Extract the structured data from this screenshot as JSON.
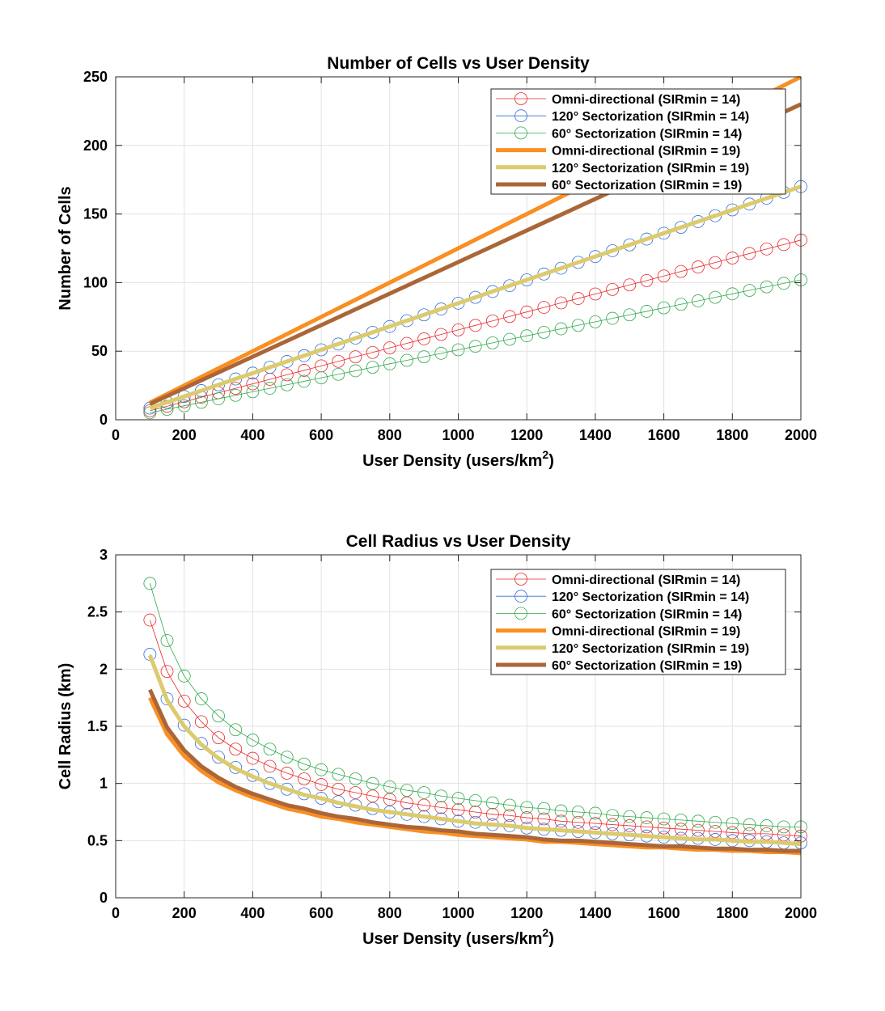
{
  "chart_data": [
    {
      "type": "line",
      "title": "Number of Cells vs User Density",
      "xlabel": "User Density (users/km",
      "xlabel_sup": "2",
      "xlabel_end": ")",
      "ylabel": "Number of Cells",
      "xlim": [
        0,
        2000
      ],
      "ylim": [
        0,
        250
      ],
      "xticks": [
        0,
        200,
        400,
        600,
        800,
        1000,
        1200,
        1400,
        1600,
        1800,
        2000
      ],
      "yticks": [
        0,
        50,
        100,
        150,
        200,
        250
      ],
      "grid": true,
      "legend": "top-right",
      "x": [
        100,
        150,
        200,
        250,
        300,
        350,
        400,
        450,
        500,
        550,
        600,
        650,
        700,
        750,
        800,
        850,
        900,
        950,
        1000,
        1050,
        1100,
        1150,
        1200,
        1250,
        1300,
        1350,
        1400,
        1450,
        1500,
        1550,
        1600,
        1650,
        1700,
        1750,
        1800,
        1850,
        1900,
        1950,
        2000
      ],
      "series": [
        {
          "name": "Omni-directional (SIRmin = 14)",
          "color": "#e8282b",
          "style": "marker",
          "values": [
            6.55,
            9.83,
            13.1,
            16.4,
            19.7,
            22.9,
            26.2,
            29.5,
            32.8,
            36.0,
            39.3,
            42.6,
            45.9,
            49.1,
            52.4,
            55.7,
            59.0,
            62.2,
            65.5,
            68.8,
            72.1,
            75.3,
            78.6,
            81.9,
            85.2,
            88.4,
            91.7,
            95.0,
            98.3,
            101.5,
            104.8,
            108.1,
            111.4,
            114.6,
            117.9,
            121.2,
            124.5,
            127.7,
            131
          ]
        },
        {
          "name": "120° Sectorization (SIRmin = 14)",
          "color": "#2f6fd6",
          "style": "marker",
          "values": [
            8.5,
            12.75,
            17.0,
            21.25,
            25.5,
            29.75,
            34.0,
            38.25,
            42.5,
            46.75,
            51.0,
            55.25,
            59.5,
            63.75,
            68.0,
            72.25,
            76.5,
            80.75,
            85.0,
            89.25,
            93.5,
            97.75,
            102.0,
            106.25,
            110.5,
            114.75,
            119.0,
            123.25,
            127.5,
            131.75,
            136.0,
            140.25,
            144.5,
            148.75,
            153.0,
            157.25,
            161.5,
            165.75,
            170
          ]
        },
        {
          "name": "60° Sectorization (SIRmin = 14)",
          "color": "#2ea84a",
          "style": "marker",
          "values": [
            5.1,
            7.65,
            10.2,
            12.75,
            15.3,
            17.85,
            20.4,
            22.95,
            25.5,
            28.05,
            30.6,
            33.15,
            35.7,
            38.25,
            40.8,
            43.35,
            45.9,
            48.45,
            51.0,
            53.55,
            56.1,
            58.65,
            61.2,
            63.75,
            66.3,
            68.85,
            71.4,
            73.95,
            76.5,
            79.05,
            81.6,
            84.15,
            86.7,
            89.25,
            91.8,
            94.35,
            96.9,
            99.45,
            102
          ]
        },
        {
          "name": "Omni-directional (SIRmin = 19)",
          "color": "#f98f23",
          "style": "thick",
          "values": [
            12.5,
            18.75,
            25.0,
            31.25,
            37.5,
            43.75,
            50.0,
            56.25,
            62.5,
            68.75,
            75.0,
            81.25,
            87.5,
            93.75,
            100.0,
            106.25,
            112.5,
            118.75,
            125.0,
            131.25,
            137.5,
            143.75,
            150.0,
            156.25,
            162.5,
            168.75,
            175.0,
            181.25,
            187.5,
            193.75,
            200.0,
            206.25,
            212.5,
            218.75,
            225.0,
            231.25,
            237.5,
            243.75,
            250
          ]
        },
        {
          "name": "120° Sectorization (SIRmin = 19)",
          "color": "#dccb6e",
          "style": "thick",
          "values": [
            8.5,
            12.75,
            17.0,
            21.25,
            25.5,
            29.75,
            34.0,
            38.25,
            42.5,
            46.75,
            51.0,
            55.25,
            59.5,
            63.75,
            68.0,
            72.25,
            76.5,
            80.75,
            85.0,
            89.25,
            93.5,
            97.75,
            102.0,
            106.25,
            110.5,
            114.75,
            119.0,
            123.25,
            127.5,
            131.75,
            136.0,
            140.25,
            144.5,
            148.75,
            153.0,
            157.25,
            161.5,
            165.75,
            170
          ]
        },
        {
          "name": "60° Sectorization (SIRmin = 19)",
          "color": "#ab6638",
          "style": "thick",
          "values": [
            11.5,
            17.25,
            23.0,
            28.75,
            34.5,
            40.25,
            46.0,
            51.75,
            57.5,
            63.25,
            69.0,
            74.75,
            80.5,
            86.25,
            92.0,
            97.75,
            103.5,
            109.25,
            115.0,
            120.75,
            126.5,
            132.25,
            138.0,
            143.75,
            149.5,
            155.25,
            161.0,
            166.75,
            172.5,
            178.25,
            184.0,
            189.75,
            195.5,
            201.25,
            207.0,
            212.75,
            218.5,
            224.25,
            230
          ]
        }
      ]
    },
    {
      "type": "line",
      "title": "Cell Radius vs User Density",
      "xlabel": "User Density (users/km",
      "xlabel_sup": "2",
      "xlabel_end": ")",
      "ylabel": "Cell Radius (km)",
      "xlim": [
        0,
        2000
      ],
      "ylim": [
        0,
        3
      ],
      "xticks": [
        0,
        200,
        400,
        600,
        800,
        1000,
        1200,
        1400,
        1600,
        1800,
        2000
      ],
      "yticks": [
        0,
        0.5,
        1,
        1.5,
        2,
        2.5,
        3
      ],
      "grid": true,
      "legend": "top-right",
      "x": [
        100,
        150,
        200,
        250,
        300,
        350,
        400,
        450,
        500,
        550,
        600,
        650,
        700,
        750,
        800,
        850,
        900,
        950,
        1000,
        1050,
        1100,
        1150,
        1200,
        1250,
        1300,
        1350,
        1400,
        1450,
        1500,
        1550,
        1600,
        1650,
        1700,
        1750,
        1800,
        1850,
        1900,
        1950,
        2000
      ],
      "series": [
        {
          "name": "Omni-directional (SIRmin = 14)",
          "color": "#e8282b",
          "style": "marker",
          "values": [
            2.43,
            1.98,
            1.72,
            1.54,
            1.4,
            1.3,
            1.22,
            1.15,
            1.09,
            1.04,
            0.99,
            0.95,
            0.92,
            0.89,
            0.86,
            0.83,
            0.81,
            0.79,
            0.77,
            0.75,
            0.73,
            0.72,
            0.7,
            0.69,
            0.67,
            0.66,
            0.65,
            0.64,
            0.63,
            0.62,
            0.61,
            0.6,
            0.59,
            0.58,
            0.57,
            0.56,
            0.56,
            0.55,
            0.54
          ]
        },
        {
          "name": "120° Sectorization (SIRmin = 14)",
          "color": "#2f6fd6",
          "style": "marker",
          "values": [
            2.13,
            1.74,
            1.51,
            1.35,
            1.23,
            1.14,
            1.07,
            1.0,
            0.95,
            0.91,
            0.87,
            0.84,
            0.81,
            0.78,
            0.75,
            0.73,
            0.71,
            0.69,
            0.67,
            0.66,
            0.64,
            0.63,
            0.61,
            0.6,
            0.59,
            0.58,
            0.57,
            0.56,
            0.55,
            0.54,
            0.53,
            0.52,
            0.52,
            0.51,
            0.5,
            0.5,
            0.49,
            0.48,
            0.48
          ]
        },
        {
          "name": "60° Sectorization (SIRmin = 14)",
          "color": "#2ea84a",
          "style": "marker",
          "values": [
            2.75,
            2.25,
            1.94,
            1.74,
            1.59,
            1.47,
            1.38,
            1.3,
            1.23,
            1.17,
            1.12,
            1.08,
            1.04,
            1.0,
            0.97,
            0.94,
            0.92,
            0.89,
            0.87,
            0.85,
            0.83,
            0.81,
            0.79,
            0.78,
            0.76,
            0.75,
            0.74,
            0.72,
            0.71,
            0.7,
            0.69,
            0.68,
            0.67,
            0.66,
            0.65,
            0.64,
            0.63,
            0.62,
            0.62
          ]
        },
        {
          "name": "Omni-directional (SIRmin = 19)",
          "color": "#f98f23",
          "style": "thick",
          "values": [
            1.75,
            1.43,
            1.24,
            1.11,
            1.01,
            0.94,
            0.88,
            0.83,
            0.78,
            0.75,
            0.71,
            0.69,
            0.66,
            0.64,
            0.62,
            0.6,
            0.58,
            0.57,
            0.55,
            0.54,
            0.53,
            0.52,
            0.51,
            0.49,
            0.49,
            0.48,
            0.47,
            0.46,
            0.45,
            0.44,
            0.44,
            0.43,
            0.42,
            0.42,
            0.41,
            0.41,
            0.4,
            0.4,
            0.39
          ]
        },
        {
          "name": "120° Sectorization (SIRmin = 19)",
          "color": "#dccb6e",
          "style": "thick",
          "values": [
            2.12,
            1.73,
            1.5,
            1.34,
            1.22,
            1.13,
            1.06,
            1.0,
            0.95,
            0.9,
            0.87,
            0.83,
            0.8,
            0.77,
            0.75,
            0.73,
            0.71,
            0.69,
            0.67,
            0.65,
            0.64,
            0.63,
            0.61,
            0.6,
            0.59,
            0.58,
            0.57,
            0.56,
            0.55,
            0.54,
            0.53,
            0.52,
            0.51,
            0.51,
            0.5,
            0.49,
            0.49,
            0.48,
            0.47
          ]
        },
        {
          "name": "60° Sectorization (SIRmin = 19)",
          "color": "#ab6638",
          "style": "thick",
          "values": [
            1.82,
            1.49,
            1.29,
            1.15,
            1.05,
            0.97,
            0.91,
            0.86,
            0.81,
            0.78,
            0.74,
            0.71,
            0.69,
            0.66,
            0.64,
            0.62,
            0.61,
            0.59,
            0.58,
            0.56,
            0.55,
            0.54,
            0.53,
            0.51,
            0.5,
            0.5,
            0.49,
            0.48,
            0.47,
            0.46,
            0.45,
            0.45,
            0.44,
            0.43,
            0.43,
            0.42,
            0.42,
            0.41,
            0.41
          ]
        }
      ]
    }
  ]
}
